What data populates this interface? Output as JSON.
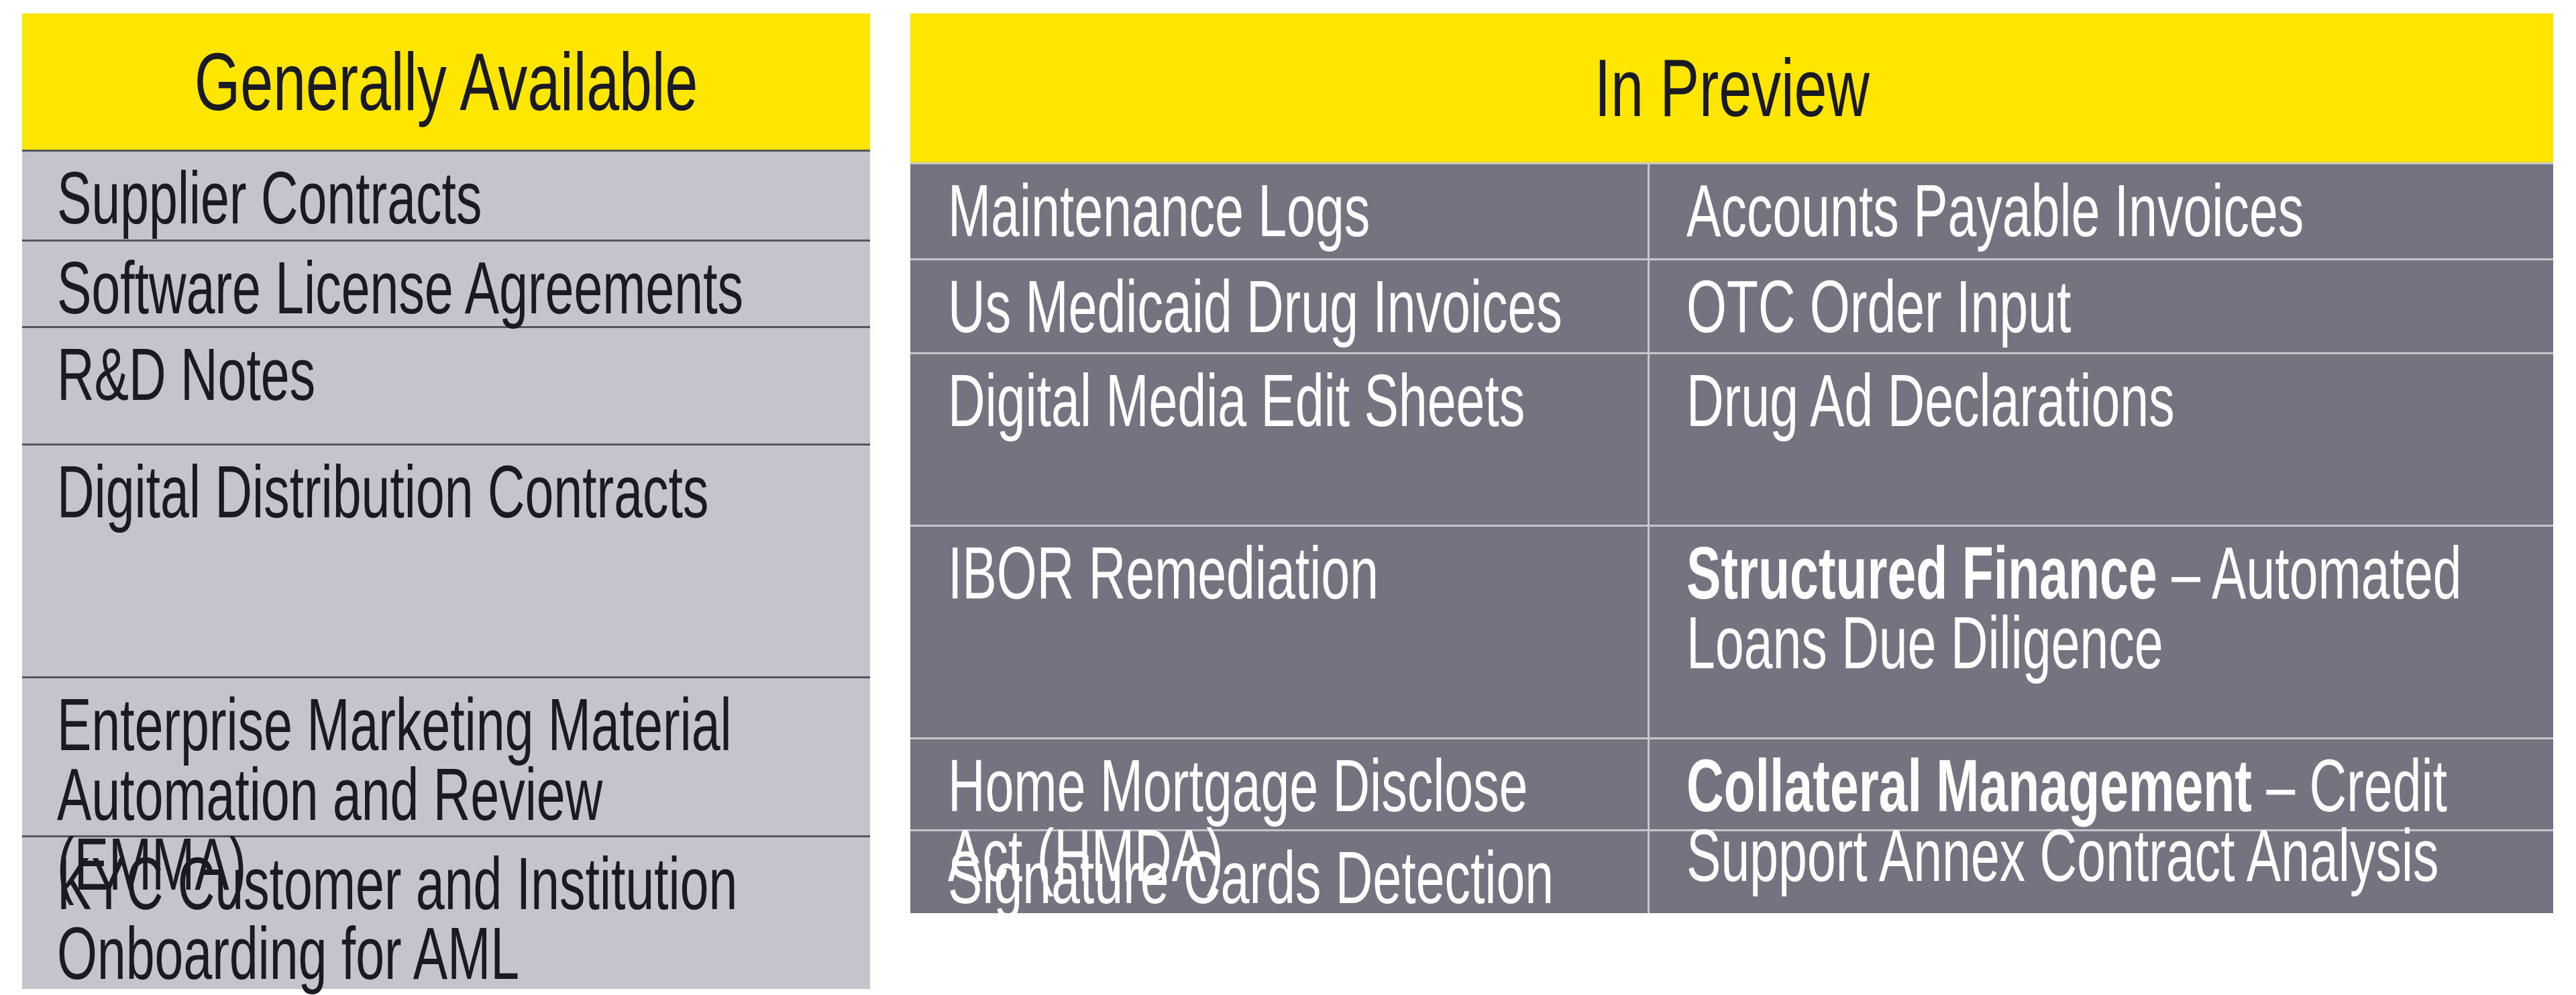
{
  "colors": {
    "brand_yellow": "#FFE600",
    "light_gray_row": "#C4C4CD",
    "dark_gray_row": "#747480",
    "dark_text": "#1A1A24",
    "light_text": "#FFFFFF",
    "left_divider": "#55555E",
    "right_divider": "#C6C6CE"
  },
  "left_table": {
    "title": "Generally Available",
    "rows": [
      {
        "text": "Supplier Contracts"
      },
      {
        "text": "Software License Agreements"
      },
      {
        "text": "R&D Notes"
      },
      {
        "text": "Digital Distribution Contracts"
      },
      {
        "text": "Enterprise Marketing Material\nAutomation and Review\n(EMMA)"
      },
      {
        "text": "KYC Customer and Institution\nOnboarding for AML"
      }
    ]
  },
  "right_table": {
    "title": "In Preview",
    "rows": [
      {
        "left": {
          "text": "Maintenance Logs"
        },
        "right": {
          "text": "Accounts Payable Invoices"
        }
      },
      {
        "left": {
          "text": "Us Medicaid Drug Invoices"
        },
        "right": {
          "text": "OTC Order Input"
        }
      },
      {
        "left": {
          "text": "Digital Media Edit Sheets"
        },
        "right": {
          "text": "Drug Ad Declarations"
        }
      },
      {
        "left": {
          "text": "IBOR Remediation"
        },
        "right": {
          "bold": "Structured Finance",
          "text": " – Automated\nLoans Due Diligence"
        }
      },
      {
        "left": {
          "text": "Home Mortgage Disclose\nAct (HMDA)"
        },
        "right": {
          "bold": "Collateral Management",
          "text": " – Credit\nSupport Annex Contract Analysis"
        }
      },
      {
        "left": {
          "text": "Signature Cards Detection"
        },
        "right": {
          "text": ""
        }
      }
    ]
  }
}
